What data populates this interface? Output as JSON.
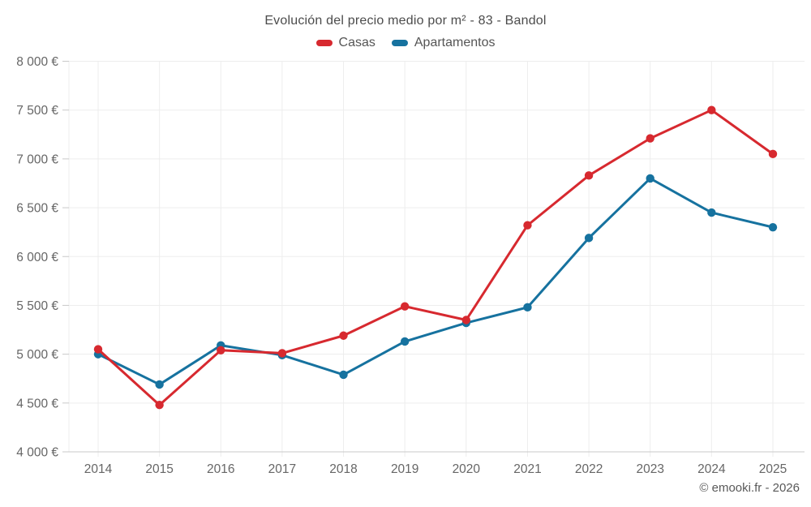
{
  "chart_data": {
    "type": "line",
    "title": "Evolución del precio medio por m² - 83 - Bandol",
    "categories": [
      "2014",
      "2015",
      "2016",
      "2017",
      "2018",
      "2019",
      "2020",
      "2021",
      "2022",
      "2023",
      "2024",
      "2025"
    ],
    "series": [
      {
        "name": "Casas",
        "color": "#d7292f",
        "values": [
          5050,
          4480,
          5040,
          5010,
          5190,
          5490,
          5350,
          6320,
          6830,
          7210,
          7500,
          7050
        ]
      },
      {
        "name": "Apartamentos",
        "color": "#16729f",
        "values": [
          5000,
          4690,
          5090,
          4990,
          4790,
          5130,
          5320,
          5480,
          6190,
          6800,
          6450,
          6300
        ]
      }
    ],
    "xlabel": "",
    "ylabel": "",
    "ylim": [
      4000,
      8000
    ],
    "y_tick_step": 500,
    "y_tick_suffix": " €",
    "grid": true,
    "legend_position": "top",
    "footer": "© emooki.fr - 2026",
    "colors": {
      "grid": "#ededed",
      "axis": "#c9c9c9",
      "tick": "#c9c9c9",
      "axis_label": "#666666",
      "title_text": "#4c4c4c",
      "legend_text": "#555555",
      "footer_text": "#595959"
    }
  }
}
